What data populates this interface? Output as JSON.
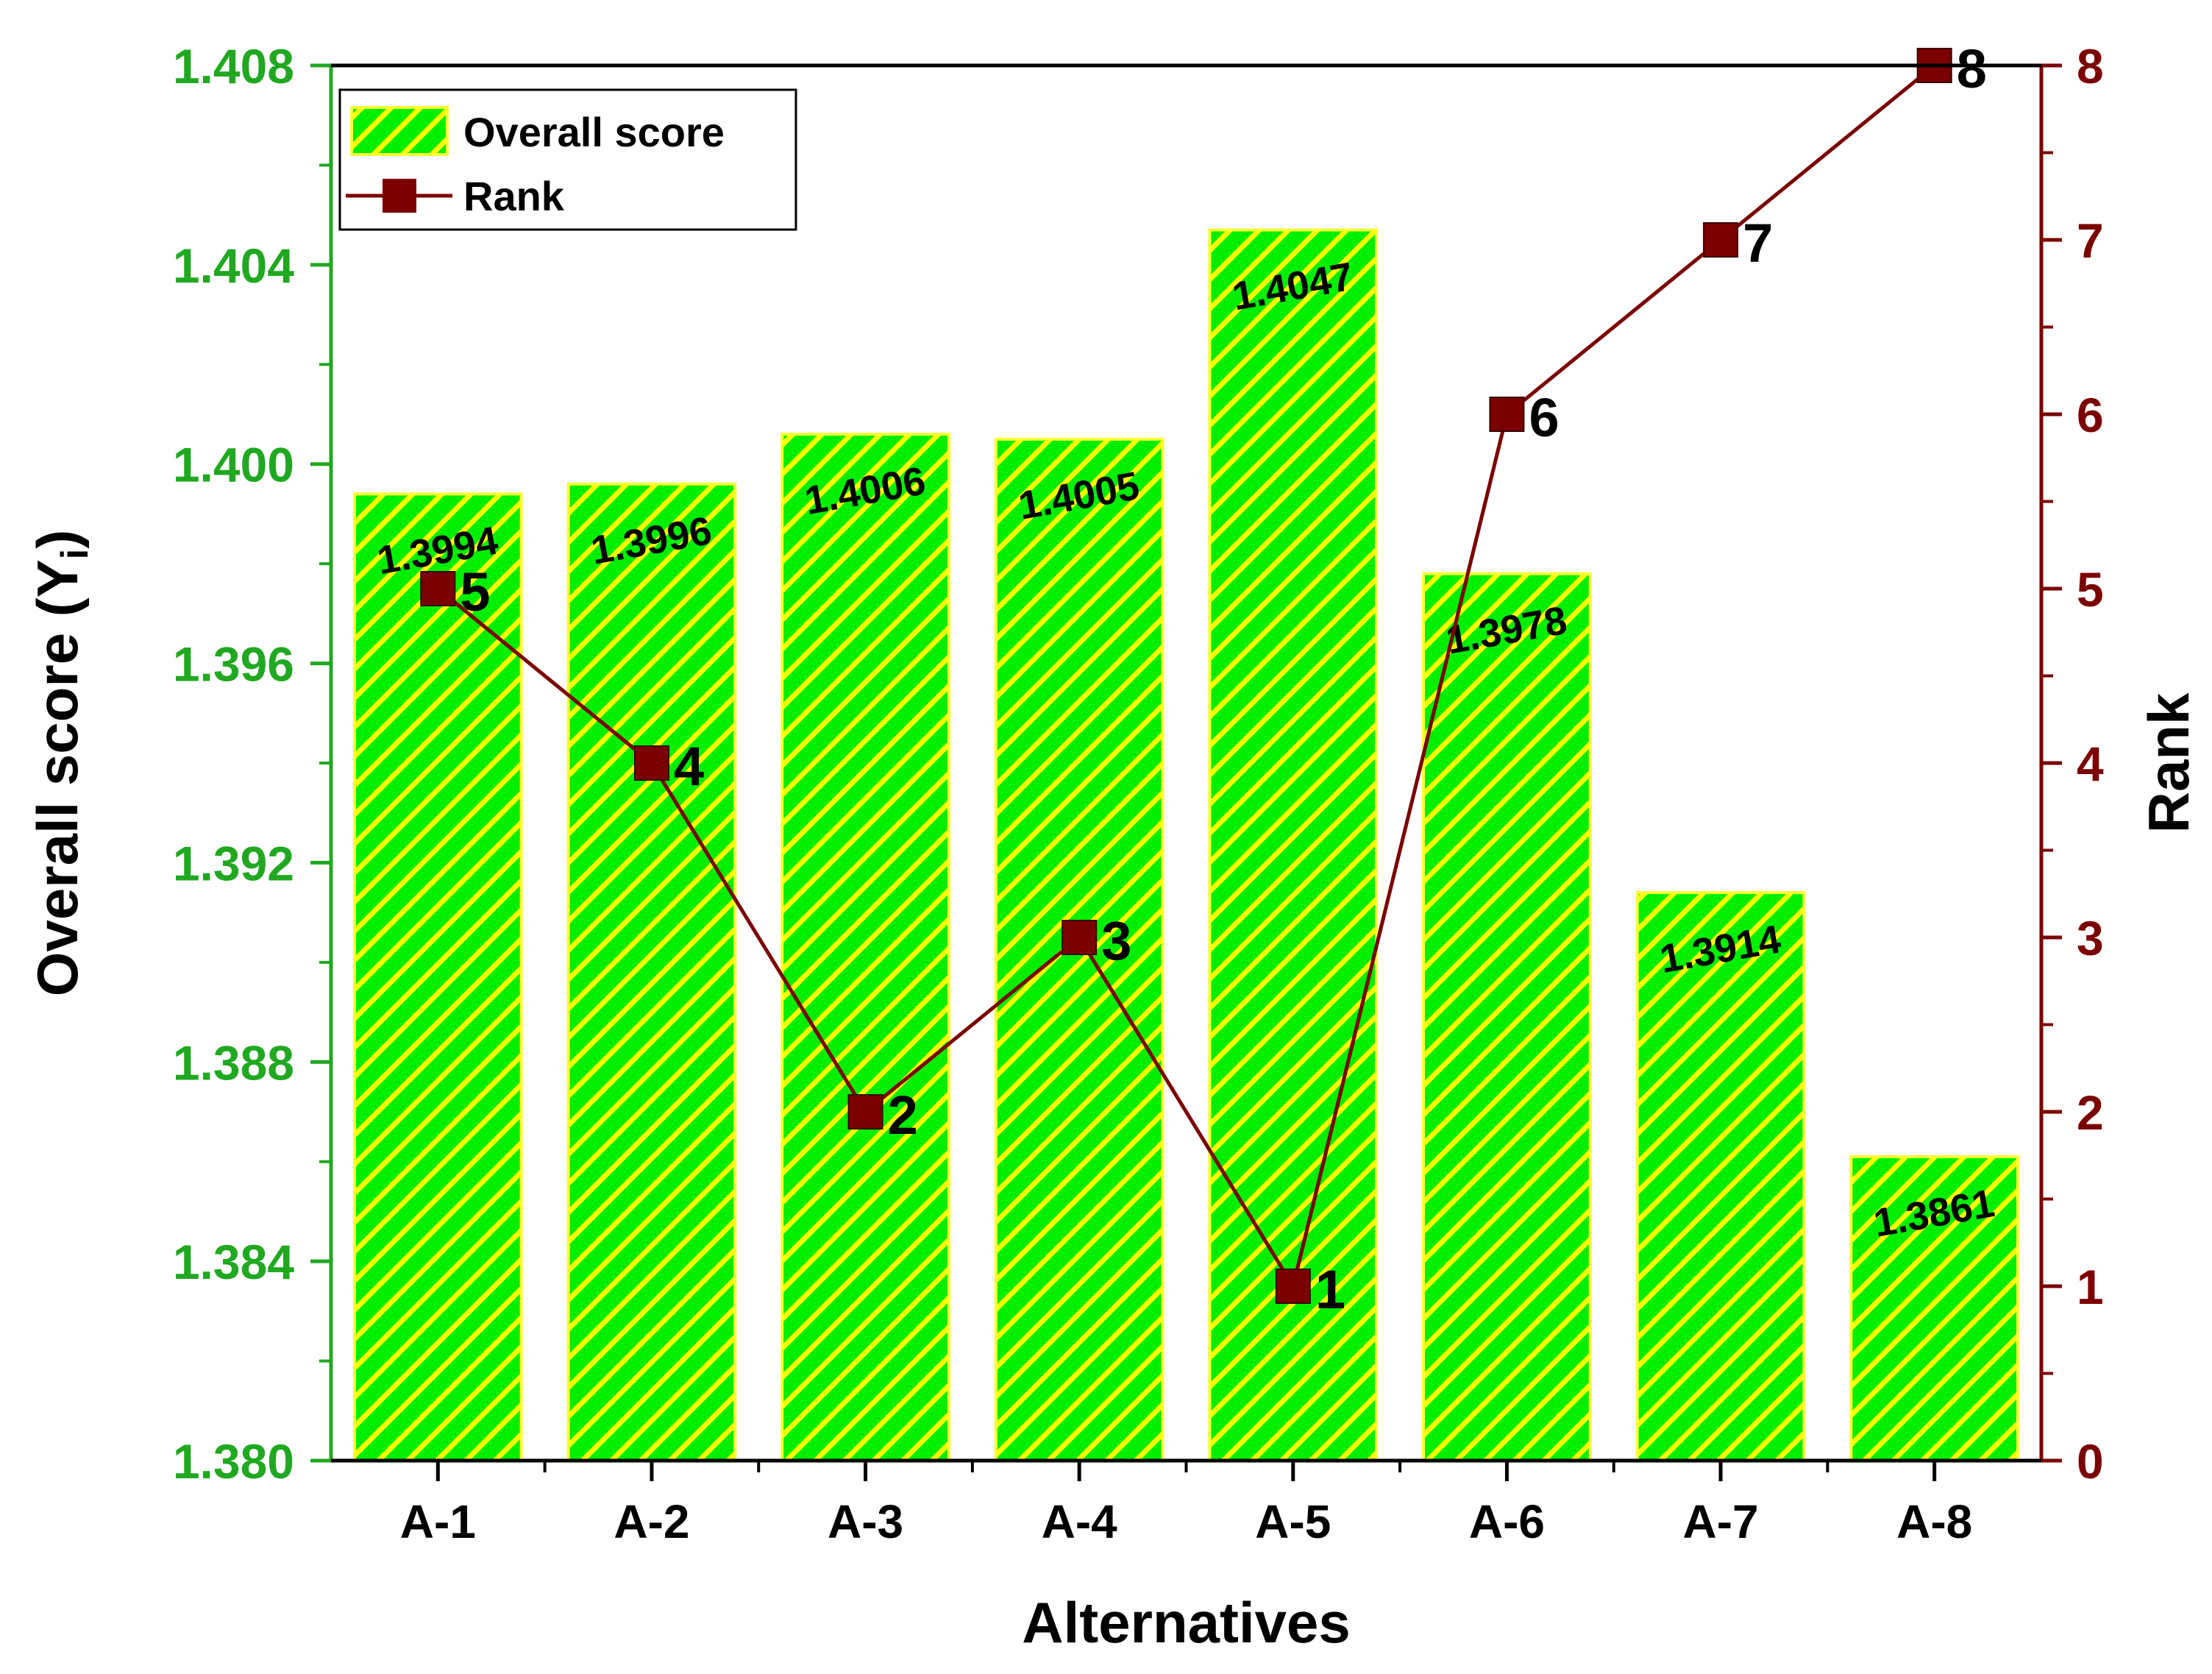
{
  "chart_data": {
    "type": "bar",
    "categories": [
      "A-1",
      "A-2",
      "A-3",
      "A-4",
      "A-5",
      "A-6",
      "A-7",
      "A-8"
    ],
    "series": [
      {
        "name": "Overall score",
        "type": "bar",
        "axis": "left",
        "values": [
          1.3994,
          1.3996,
          1.4006,
          1.4005,
          1.4047,
          1.3978,
          1.3914,
          1.3861
        ],
        "labels": [
          "1.3994",
          "1.3996",
          "1.4006",
          "1.4005",
          "1.4047",
          "1.3978",
          "1.3914",
          "1.3861"
        ]
      },
      {
        "name": "Rank",
        "type": "line",
        "axis": "right",
        "values": [
          5,
          4,
          2,
          3,
          1,
          6,
          7,
          8
        ],
        "labels": [
          "5",
          "4",
          "2",
          "3",
          "1",
          "6",
          "7",
          "8"
        ]
      }
    ],
    "xlabel": "Alternatives",
    "ylabel": "Overall score (Y",
    "ylabel_sub": "i",
    "ylabel_close": ")",
    "y2label": "Rank",
    "ylim": [
      1.38,
      1.408
    ],
    "y2lim": [
      0,
      8
    ],
    "yticks": [
      "1.380",
      "1.384",
      "1.388",
      "1.392",
      "1.396",
      "1.400",
      "1.404",
      "1.408"
    ],
    "y2ticks": [
      "0",
      "1",
      "2",
      "3",
      "4",
      "5",
      "6",
      "7",
      "8"
    ],
    "legend": {
      "position": "top-left",
      "items": [
        "Overall score",
        "Rank"
      ]
    },
    "colors": {
      "bar_fill": "#00ee00",
      "bar_hatch": "#ffff00",
      "bar_edge": "#ffff33",
      "line": "#7b0000",
      "left_axis": "#21a821",
      "right_axis": "#7b0000",
      "text": "#000000"
    },
    "grid": false
  }
}
